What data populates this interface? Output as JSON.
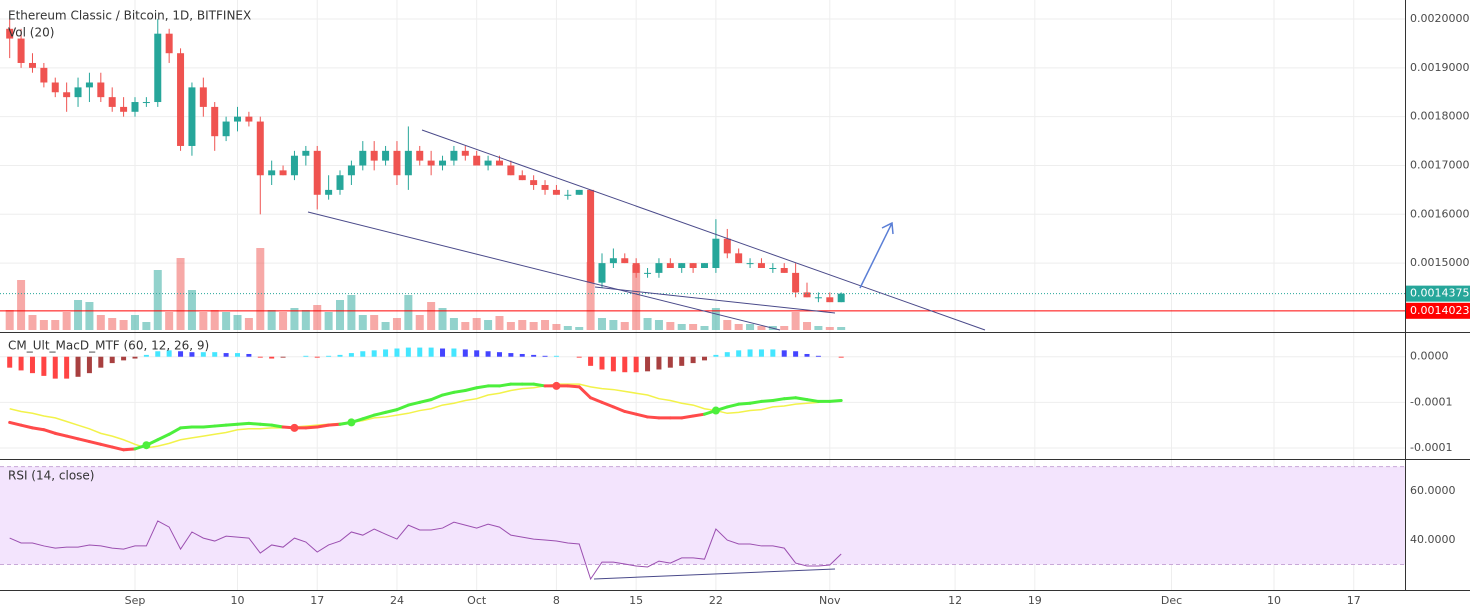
{
  "chart_data": [
    {
      "type": "candlestick",
      "title": "Ethereum Classic / Bitcoin, 1D, BITFINEX",
      "volume_title": "Vol (20)",
      "xlim": [
        -0.5,
        122.5
      ],
      "xticks": [
        {
          "value": 11,
          "label": "Sep"
        },
        {
          "value": 20,
          "label": "10"
        },
        {
          "value": 27,
          "label": "17"
        },
        {
          "value": 34,
          "label": "24"
        },
        {
          "value": 41,
          "label": "Oct"
        },
        {
          "value": 48,
          "label": "8"
        },
        {
          "value": 55,
          "label": "15"
        },
        {
          "value": 62,
          "label": "22"
        },
        {
          "value": 72,
          "label": "Nov"
        },
        {
          "value": 83,
          "label": "12"
        },
        {
          "value": 90,
          "label": "19"
        },
        {
          "value": 102,
          "label": "Dec"
        },
        {
          "value": 111,
          "label": "10"
        },
        {
          "value": 118,
          "label": "17"
        }
      ],
      "ylim": [
        0.001363,
        0.002039
      ],
      "yticks": [
        {
          "value": 0.0015,
          "label": "0.0015000"
        },
        {
          "value": 0.0016,
          "label": "0.0016000"
        },
        {
          "value": 0.0017,
          "label": "0.0017000"
        },
        {
          "value": 0.0018,
          "label": "0.0018000"
        },
        {
          "value": 0.0019,
          "label": "0.0019000"
        },
        {
          "value": 0.002,
          "label": "0.0020000"
        }
      ],
      "grid": true,
      "up_color": "#26a69a",
      "down_color": "#ef5350",
      "open": [
        0.00198,
        0.00196,
        0.00191,
        0.0019,
        0.00187,
        0.00185,
        0.00184,
        0.00186,
        0.00187,
        0.00184,
        0.00182,
        0.00181,
        0.00183,
        0.00183,
        0.00197,
        0.00193,
        0.00174,
        0.00186,
        0.00182,
        0.00176,
        0.00179,
        0.0018,
        0.00179,
        0.00168,
        0.00169,
        0.00168,
        0.00172,
        0.00173,
        0.00164,
        0.00165,
        0.00168,
        0.0017,
        0.00173,
        0.00171,
        0.00173,
        0.00168,
        0.00173,
        0.00171,
        0.0017,
        0.00171,
        0.00173,
        0.00172,
        0.0017,
        0.00171,
        0.0017,
        0.00168,
        0.00167,
        0.00166,
        0.00165,
        0.00164,
        0.00164,
        0.00165,
        0.00146,
        0.0015,
        0.00151,
        0.0015,
        0.00148,
        0.00148,
        0.0015,
        0.00149,
        0.0015,
        0.00149,
        0.00149,
        0.00155,
        0.00152,
        0.0015,
        0.0015,
        0.00149,
        0.00149,
        0.00148,
        0.00144,
        0.00143,
        0.00143,
        0.00142
      ],
      "high": [
        0.002,
        0.00198,
        0.00193,
        0.00191,
        0.00188,
        0.00187,
        0.00188,
        0.00189,
        0.00189,
        0.00186,
        0.00184,
        0.00184,
        0.00184,
        0.002,
        0.00198,
        0.00194,
        0.00187,
        0.00188,
        0.00183,
        0.0018,
        0.00182,
        0.00181,
        0.0018,
        0.00171,
        0.0017,
        0.00173,
        0.00174,
        0.00174,
        0.00168,
        0.00169,
        0.00171,
        0.00175,
        0.00175,
        0.00174,
        0.00175,
        0.00178,
        0.00174,
        0.00173,
        0.00172,
        0.00174,
        0.00174,
        0.00173,
        0.00172,
        0.00172,
        0.00171,
        0.00169,
        0.00168,
        0.00167,
        0.00166,
        0.00165,
        0.00165,
        0.00165,
        0.00152,
        0.00153,
        0.00152,
        0.00151,
        0.00149,
        0.00151,
        0.00151,
        0.0015,
        0.0015,
        0.0015,
        0.00159,
        0.00157,
        0.00153,
        0.00151,
        0.00151,
        0.0015,
        0.0015,
        0.0015,
        0.00146,
        0.00144,
        0.00144,
        0.00144
      ],
      "low": [
        0.00192,
        0.0019,
        0.00189,
        0.00186,
        0.00184,
        0.00181,
        0.00182,
        0.00183,
        0.00183,
        0.00181,
        0.0018,
        0.0018,
        0.00182,
        0.00182,
        0.00191,
        0.00173,
        0.00172,
        0.0018,
        0.00173,
        0.00175,
        0.00177,
        0.00178,
        0.0016,
        0.00166,
        0.00168,
        0.00167,
        0.0017,
        0.00161,
        0.00163,
        0.00164,
        0.00166,
        0.00169,
        0.00169,
        0.0017,
        0.00166,
        0.00165,
        0.0017,
        0.00168,
        0.00169,
        0.0017,
        0.00171,
        0.0017,
        0.00169,
        0.0017,
        0.00168,
        0.00167,
        0.00165,
        0.00164,
        0.00164,
        0.00163,
        0.00164,
        0.00146,
        0.00145,
        0.00149,
        0.0015,
        0.00147,
        0.00147,
        0.00147,
        0.00149,
        0.00148,
        0.00148,
        0.00149,
        0.00148,
        0.00151,
        0.0015,
        0.00149,
        0.00149,
        0.00148,
        0.00148,
        0.00143,
        0.00143,
        0.00142,
        0.00142,
        0.00142
      ],
      "close": [
        0.00196,
        0.00191,
        0.0019,
        0.00187,
        0.00185,
        0.00184,
        0.00186,
        0.00187,
        0.00184,
        0.00182,
        0.00181,
        0.00183,
        0.00183,
        0.00197,
        0.00193,
        0.00174,
        0.00186,
        0.00182,
        0.00176,
        0.00179,
        0.0018,
        0.00179,
        0.00168,
        0.00169,
        0.00168,
        0.00172,
        0.00173,
        0.00164,
        0.00165,
        0.00168,
        0.0017,
        0.00173,
        0.00171,
        0.00173,
        0.00168,
        0.00173,
        0.00171,
        0.0017,
        0.00171,
        0.00173,
        0.00172,
        0.0017,
        0.00171,
        0.0017,
        0.00168,
        0.00167,
        0.00166,
        0.00165,
        0.00164,
        0.00164,
        0.00165,
        0.00146,
        0.0015,
        0.00151,
        0.0015,
        0.00148,
        0.00148,
        0.0015,
        0.00149,
        0.0015,
        0.00149,
        0.0015,
        0.00155,
        0.00152,
        0.0015,
        0.0015,
        0.00149,
        0.00149,
        0.00148,
        0.00144,
        0.00143,
        0.00143,
        0.00142,
        0.0014375
      ],
      "volume": [
        20,
        50,
        15,
        10,
        10,
        18,
        30,
        28,
        15,
        12,
        10,
        15,
        8,
        60,
        18,
        72,
        40,
        18,
        20,
        18,
        15,
        12,
        82,
        20,
        18,
        22,
        20,
        25,
        18,
        30,
        35,
        15,
        15,
        8,
        12,
        35,
        15,
        28,
        22,
        12,
        8,
        12,
        10,
        14,
        8,
        10,
        8,
        10,
        6,
        4,
        3,
        68,
        12,
        10,
        8,
        65,
        12,
        10,
        8,
        6,
        6,
        4,
        22,
        10,
        6,
        6,
        4,
        4,
        4,
        18,
        8,
        4,
        3,
        3
      ],
      "vlim": [
        0,
        100
      ],
      "hline": 0.0014023,
      "hline_color": "#ff0000"
    },
    {
      "type": "macd",
      "title": "CM_Ult_MacD_MTF (60, 12, 26, 9)",
      "ylim": [
        -0.000111,
        2.6e-05
      ],
      "yticks": [
        {
          "value": 0,
          "label": "0.0000"
        },
        {
          "value": -5e-05,
          "label": "-0.0001"
        },
        {
          "value": -0.0001,
          "label": "-0.0001"
        }
      ],
      "macd_up_color": "#4cef3c",
      "macd_down_color": "#ff4a4a",
      "signal_color": "#f2f24a",
      "hist_colors": {
        "above_rising": "#44e6ff",
        "above_falling": "#4444ff",
        "below_falling": "#ff4444",
        "below_rising": "#a84040"
      },
      "histogram": [
        -1.2e-05,
        -1.5e-05,
        -1.8e-05,
        -2.1e-05,
        -2.4e-05,
        -2.4e-05,
        -2.2e-05,
        -1.8e-05,
        -1.2e-05,
        -7e-06,
        -4e-06,
        -2e-06,
        2e-06,
        6e-06,
        7e-06,
        6e-06,
        5e-06,
        5e-06,
        5e-06,
        4e-06,
        4e-06,
        3e-06,
        -1e-06,
        -2e-06,
        -1e-06,
        0,
        1e-06,
        -1e-06,
        1e-06,
        2e-06,
        4e-06,
        6e-06,
        7e-06,
        8e-06,
        9e-06,
        1e-05,
        1e-05,
        1e-05,
        9e-06,
        9e-06,
        8e-06,
        7e-06,
        6e-06,
        5e-06,
        4e-06,
        3e-06,
        2e-06,
        1e-06,
        1e-06,
        0,
        -1e-06,
        -1e-05,
        -1.4e-05,
        -1.6e-05,
        -1.7e-05,
        -1.7e-05,
        -1.6e-05,
        -1.4e-05,
        -1.2e-05,
        -1e-05,
        -7e-06,
        -4e-06,
        2e-06,
        5e-06,
        7e-06,
        8e-06,
        8e-06,
        8e-06,
        7e-06,
        6e-06,
        3e-06,
        1e-06,
        0,
        -1e-06
      ],
      "macd": [
        -7.2e-05,
        -7.5e-05,
        -7.8e-05,
        -8e-05,
        -8.4e-05,
        -8.7e-05,
        -9e-05,
        -9.3e-05,
        -9.6e-05,
        -9.9e-05,
        -0.000102,
        -0.000101,
        -9.7e-05,
        -9.1e-05,
        -8.5e-05,
        -7.8e-05,
        -7.7e-05,
        -7.7e-05,
        -7.6e-05,
        -7.5e-05,
        -7.4e-05,
        -7.3e-05,
        -7.4e-05,
        -7.5e-05,
        -7.7e-05,
        -7.8e-05,
        -7.8e-05,
        -7.7e-05,
        -7.5e-05,
        -7.4e-05,
        -7.2e-05,
        -6.8e-05,
        -6.4e-05,
        -6.1e-05,
        -5.8e-05,
        -5.3e-05,
        -5e-05,
        -4.7e-05,
        -4.2e-05,
        -3.9e-05,
        -3.7e-05,
        -3.4e-05,
        -3.2e-05,
        -3.2e-05,
        -3e-05,
        -3e-05,
        -3e-05,
        -3.2e-05,
        -3.2e-05,
        -3.2e-05,
        -3.3e-05,
        -4.5e-05,
        -5e-05,
        -5.5e-05,
        -6e-05,
        -6.3e-05,
        -6.6e-05,
        -6.7e-05,
        -6.7e-05,
        -6.7e-05,
        -6.5e-05,
        -6.3e-05,
        -5.9e-05,
        -5.5e-05,
        -5.2e-05,
        -5.1e-05,
        -4.9e-05,
        -4.8e-05,
        -4.6e-05,
        -4.5e-05,
        -4.7e-05,
        -4.9e-05,
        -4.9e-05,
        -4.8e-05
      ],
      "signal": [
        -5.7e-05,
        -6e-05,
        -6.2e-05,
        -6.5e-05,
        -6.7e-05,
        -7.1e-05,
        -7.5e-05,
        -7.9e-05,
        -8.4e-05,
        -8.7e-05,
        -9.1e-05,
        -9.6e-05,
        -0.0001,
        -9.8e-05,
        -9.5e-05,
        -9.1e-05,
        -8.9e-05,
        -8.7e-05,
        -8.5e-05,
        -8.3e-05,
        -8e-05,
        -7.9e-05,
        -7.9e-05,
        -7.8e-05,
        -7.8e-05,
        -7.7e-05,
        -7.6e-05,
        -7.5e-05,
        -7.4e-05,
        -7.3e-05,
        -7.2e-05,
        -7e-05,
        -6.7e-05,
        -6.6e-05,
        -6.4e-05,
        -6.2e-05,
        -5.9e-05,
        -5.7e-05,
        -5.3e-05,
        -5.1e-05,
        -4.8e-05,
        -4.6e-05,
        -4.2e-05,
        -4e-05,
        -3.7e-05,
        -3.5e-05,
        -3.4e-05,
        -3.2e-05,
        -3e-05,
        -3e-05,
        -3e-05,
        -3.3e-05,
        -3.5e-05,
        -3.6e-05,
        -3.8e-05,
        -4e-05,
        -4.2e-05,
        -4.6e-05,
        -4.8e-05,
        -5.1e-05,
        -5.3e-05,
        -5.7e-05,
        -5.9e-05,
        -6.2e-05,
        -6.1e-05,
        -5.9e-05,
        -5.8e-05,
        -5.5e-05,
        -5.4e-05,
        -5.2e-05,
        -5.1e-05,
        -5e-05,
        -4.9e-05,
        -4.8e-05
      ]
    },
    {
      "type": "rsi",
      "title": "RSI (14, close)",
      "ylim": [
        19.6,
        72.7
      ],
      "yticks": [
        {
          "value": 40,
          "label": "40.0000"
        },
        {
          "value": 60,
          "label": "60.0000"
        }
      ],
      "band": [
        30,
        70
      ],
      "band_color": "#f3e4fd",
      "color": "#9b4fb0",
      "values": [
        40.8,
        38.8,
        38.8,
        37.6,
        36.7,
        37.1,
        37.1,
        38.0,
        37.6,
        36.7,
        36.3,
        37.6,
        37.6,
        47.8,
        45.3,
        36.3,
        43.3,
        40.8,
        39.6,
        41.6,
        41.2,
        40.8,
        34.7,
        38.0,
        37.1,
        40.8,
        39.2,
        35.1,
        38.0,
        39.6,
        43.3,
        42.0,
        44.5,
        42.4,
        40.4,
        46.1,
        44.1,
        44.1,
        44.9,
        47.3,
        46.1,
        44.9,
        46.5,
        45.3,
        42.0,
        41.2,
        40.4,
        40.0,
        39.6,
        38.8,
        38.4,
        24.1,
        31.0,
        31.0,
        30.2,
        29.4,
        29.0,
        31.4,
        30.6,
        32.7,
        32.7,
        32.2,
        44.5,
        40.0,
        38.4,
        38.4,
        37.6,
        37.6,
        36.7,
        30.6,
        29.4,
        29.4,
        29.8,
        34.3
      ]
    }
  ]
}
